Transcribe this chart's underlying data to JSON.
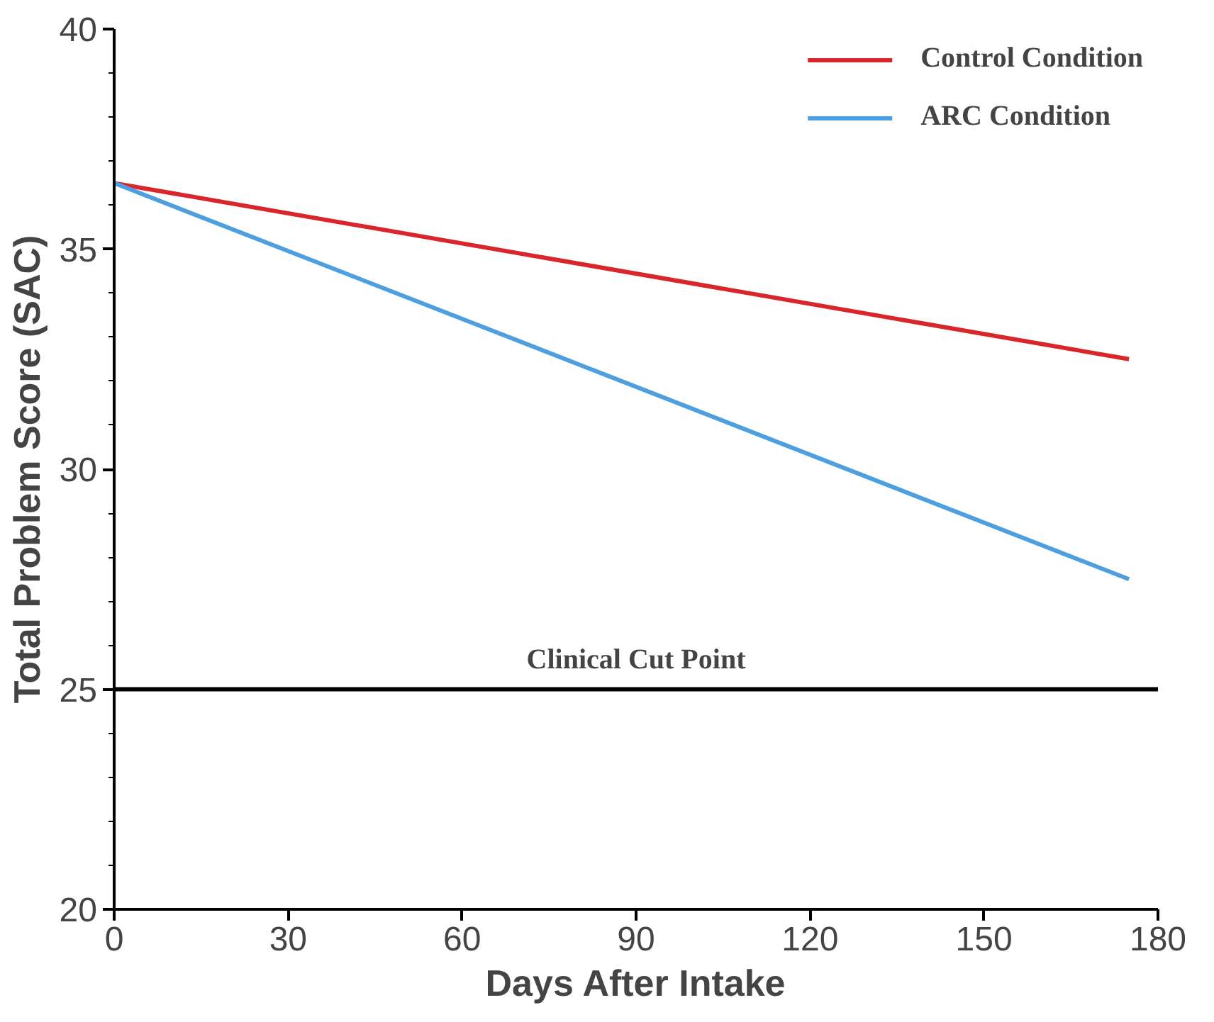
{
  "chart_data": {
    "type": "line",
    "xlabel": "Days After Intake",
    "ylabel": "Total Problem Score (SAC)",
    "x": [
      0,
      175
    ],
    "series": [
      {
        "name": "Control Condition",
        "color": "#d9262b",
        "values": [
          36.5,
          32.5
        ]
      },
      {
        "name": "ARC Condition",
        "color": "#4d9fe0",
        "values": [
          36.5,
          27.5
        ]
      }
    ],
    "xlim": [
      0,
      180
    ],
    "ylim": [
      20,
      40
    ],
    "xticks": [
      0,
      30,
      60,
      90,
      120,
      150,
      180
    ],
    "yticks": [
      20,
      {
        "value": 21,
        "label": null
      },
      {
        "value": 22,
        "label": null
      },
      {
        "value": 23,
        "label": null
      },
      {
        "value": 24,
        "label": null
      },
      25,
      {
        "value": 26,
        "label": null
      },
      {
        "value": 27,
        "label": null
      },
      {
        "value": 28,
        "label": null
      },
      {
        "value": 29,
        "label": null
      },
      30,
      {
        "value": 31,
        "label": null
      },
      {
        "value": 32,
        "label": null
      },
      {
        "value": 33,
        "label": null
      },
      {
        "value": 34,
        "label": null
      },
      35,
      {
        "value": 36,
        "label": null
      },
      {
        "value": 37,
        "label": null
      },
      {
        "value": 38,
        "label": null
      },
      {
        "value": 39,
        "label": null
      },
      40
    ],
    "ref_lines": [
      {
        "axis": "y",
        "value": 25,
        "label": "Clinical Cut Point",
        "color": "#000000"
      }
    ],
    "legend": "top right",
    "grid": false,
    "marker": "none",
    "line_style": "solid"
  }
}
